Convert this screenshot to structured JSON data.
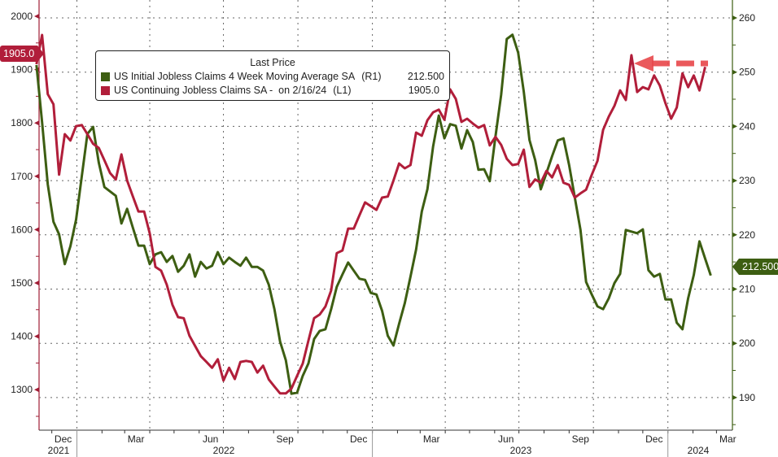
{
  "chart_data": {
    "type": "line",
    "title": "",
    "legend": {
      "title": "Last Price",
      "placement": "top-left",
      "entries": [
        {
          "name": "US Initial Jobless Claims 4 Week Moving Average SA",
          "axis": "(R1)",
          "last": "212.500"
        },
        {
          "name": "US Continuing Jobless Claims SA -  on 2/16/24",
          "axis": "(L1)",
          "last": "1905.0"
        }
      ]
    },
    "left_axis": {
      "ticks": [
        "2000",
        "1900",
        "1800",
        "1700",
        "1600",
        "1500",
        "1400",
        "1300"
      ],
      "range": [
        1225,
        2030
      ],
      "color": "#a01d35"
    },
    "right_axis": {
      "ticks": [
        "260",
        "250",
        "240",
        "230",
        "220",
        "210",
        "200",
        "190"
      ],
      "range": [
        178.5,
        263.3
      ],
      "color": "#3d5e12"
    },
    "x_axis": {
      "month_labels": [
        "Dec",
        "Mar",
        "Jun",
        "Sep",
        "Dec",
        "Mar",
        "Jun",
        "Sep",
        "Dec",
        "Mar"
      ],
      "month_label_dates": [
        "2021-12-15",
        "2022-03-15",
        "2022-06-15",
        "2022-09-15",
        "2022-12-15",
        "2023-03-15",
        "2023-06-15",
        "2023-09-15",
        "2023-12-15",
        "2024-03-15"
      ],
      "year_labels": [
        "2021",
        "2022",
        "2023",
        "2024"
      ],
      "range": [
        "2021-11-08",
        "2024-03-24"
      ]
    },
    "grid": true,
    "x": [
      "2021-11-12",
      "2021-11-19",
      "2021-11-26",
      "2021-12-03",
      "2021-12-10",
      "2021-12-17",
      "2021-12-24",
      "2021-12-31",
      "2022-01-07",
      "2022-01-14",
      "2022-01-21",
      "2022-01-28",
      "2022-02-04",
      "2022-02-11",
      "2022-02-18",
      "2022-02-25",
      "2022-03-04",
      "2022-03-11",
      "2022-03-18",
      "2022-03-25",
      "2022-04-01",
      "2022-04-08",
      "2022-04-15",
      "2022-04-22",
      "2022-04-29",
      "2022-05-06",
      "2022-05-13",
      "2022-05-20",
      "2022-05-27",
      "2022-06-03",
      "2022-06-10",
      "2022-06-17",
      "2022-06-24",
      "2022-07-01",
      "2022-07-08",
      "2022-07-15",
      "2022-07-22",
      "2022-07-29",
      "2022-08-05",
      "2022-08-12",
      "2022-08-19",
      "2022-08-26",
      "2022-09-02",
      "2022-09-09",
      "2022-09-16",
      "2022-09-23",
      "2022-09-30",
      "2022-10-07",
      "2022-10-14",
      "2022-10-21",
      "2022-10-28",
      "2022-11-04",
      "2022-11-11",
      "2022-11-18",
      "2022-11-25",
      "2022-12-02",
      "2022-12-09",
      "2022-12-16",
      "2022-12-23",
      "2022-12-30",
      "2023-01-06",
      "2023-01-13",
      "2023-01-20",
      "2023-01-27",
      "2023-02-03",
      "2023-02-10",
      "2023-02-17",
      "2023-02-24",
      "2023-03-03",
      "2023-03-10",
      "2023-03-17",
      "2023-03-24",
      "2023-03-31",
      "2023-04-07",
      "2023-04-14",
      "2023-04-21",
      "2023-04-28",
      "2023-05-05",
      "2023-05-12",
      "2023-05-19",
      "2023-05-26",
      "2023-06-02",
      "2023-06-09",
      "2023-06-16",
      "2023-06-23",
      "2023-06-30",
      "2023-07-07",
      "2023-07-14",
      "2023-07-21",
      "2023-07-28",
      "2023-08-04",
      "2023-08-11",
      "2023-08-18",
      "2023-08-25",
      "2023-09-01",
      "2023-09-08",
      "2023-09-15",
      "2023-09-22",
      "2023-09-29",
      "2023-10-06",
      "2023-10-13",
      "2023-10-20",
      "2023-10-27",
      "2023-11-03",
      "2023-11-10",
      "2023-11-17",
      "2023-11-24",
      "2023-12-01",
      "2023-12-08",
      "2023-12-15",
      "2023-12-22",
      "2023-12-29",
      "2024-01-05",
      "2024-01-12",
      "2024-01-19",
      "2024-01-26",
      "2024-02-02",
      "2024-02-09",
      "2024-02-16",
      "2024-02-23"
    ],
    "series": [
      {
        "name": "US Initial Jobless Claims 4 Week Moving Average SA",
        "axis": "right",
        "color": "#3d5e12",
        "values": [
          251.3,
          240.8,
          229.3,
          222.4,
          220.1,
          214.6,
          217.9,
          222.8,
          230.8,
          238.6,
          239.9,
          233.3,
          228.8,
          228.0,
          227.2,
          222.1,
          224.8,
          221.4,
          218.0,
          218.0,
          214.6,
          216.4,
          216.8,
          215.0,
          216.1,
          213.2,
          214.3,
          216.4,
          212.3,
          215.0,
          213.8,
          214.3,
          216.8,
          214.6,
          215.8,
          215.0,
          214.3,
          215.8,
          214.1,
          214.1,
          213.4,
          210.8,
          206.3,
          200.3,
          196.9,
          190.7,
          190.9,
          194.0,
          196.3,
          200.8,
          202.3,
          202.6,
          206.3,
          210.4,
          212.7,
          214.9,
          213.4,
          211.9,
          211.7,
          209.3,
          209.0,
          206.0,
          201.4,
          199.6,
          203.6,
          207.4,
          212.3,
          217.3,
          224.3,
          228.4,
          236.3,
          242.0,
          237.8,
          240.4,
          240.1,
          235.9,
          239.3,
          237.1,
          232.0,
          232.1,
          229.9,
          238.1,
          245.8,
          256.1,
          256.9,
          253.6,
          246.4,
          237.5,
          233.8,
          228.4,
          231.4,
          234.5,
          237.4,
          237.8,
          232.9,
          226.9,
          220.9,
          211.3,
          209.0,
          206.8,
          206.3,
          208.3,
          211.1,
          212.8,
          220.9,
          220.6,
          220.3,
          221.0,
          213.5,
          212.3,
          212.8,
          208.1,
          208.1,
          203.8,
          202.6,
          208.3,
          212.6,
          218.8,
          215.6,
          212.5
        ]
      },
      {
        "name": "US Continuing Jobless Claims SA",
        "axis": "left",
        "color": "#b11e3a",
        "values": [
          1910,
          1965,
          1854,
          1835,
          1703,
          1779,
          1767,
          1794,
          1796,
          1779,
          1761,
          1753,
          1730,
          1706,
          1694,
          1741,
          1692,
          1663,
          1634,
          1634,
          1593,
          1530,
          1523,
          1497,
          1459,
          1436,
          1434,
          1401,
          1382,
          1363,
          1352,
          1341,
          1357,
          1317,
          1341,
          1320,
          1352,
          1354,
          1352,
          1332,
          1345,
          1319,
          1306,
          1293,
          1293,
          1302,
          1326,
          1349,
          1392,
          1434,
          1441,
          1456,
          1486,
          1556,
          1561,
          1602,
          1602,
          1627,
          1651,
          1644,
          1637,
          1660,
          1662,
          1692,
          1724,
          1715,
          1721,
          1782,
          1776,
          1805,
          1820,
          1825,
          1806,
          1863,
          1845,
          1802,
          1808,
          1799,
          1791,
          1796,
          1758,
          1774,
          1759,
          1733,
          1721,
          1723,
          1750,
          1680,
          1694,
          1688,
          1710,
          1698,
          1721,
          1688,
          1684,
          1660,
          1668,
          1675,
          1703,
          1729,
          1787,
          1812,
          1832,
          1861,
          1843,
          1927,
          1858,
          1867,
          1863,
          1889,
          1870,
          1837,
          1808,
          1829,
          1893,
          1867,
          1889,
          1861,
          1905,
          null
        ]
      }
    ],
    "last_price_tags": {
      "left": "1905.0",
      "right": "212.500"
    },
    "annotation": {
      "type": "dashed-arrow",
      "color": "#e8474a",
      "points_to": "2023-11-10"
    }
  }
}
